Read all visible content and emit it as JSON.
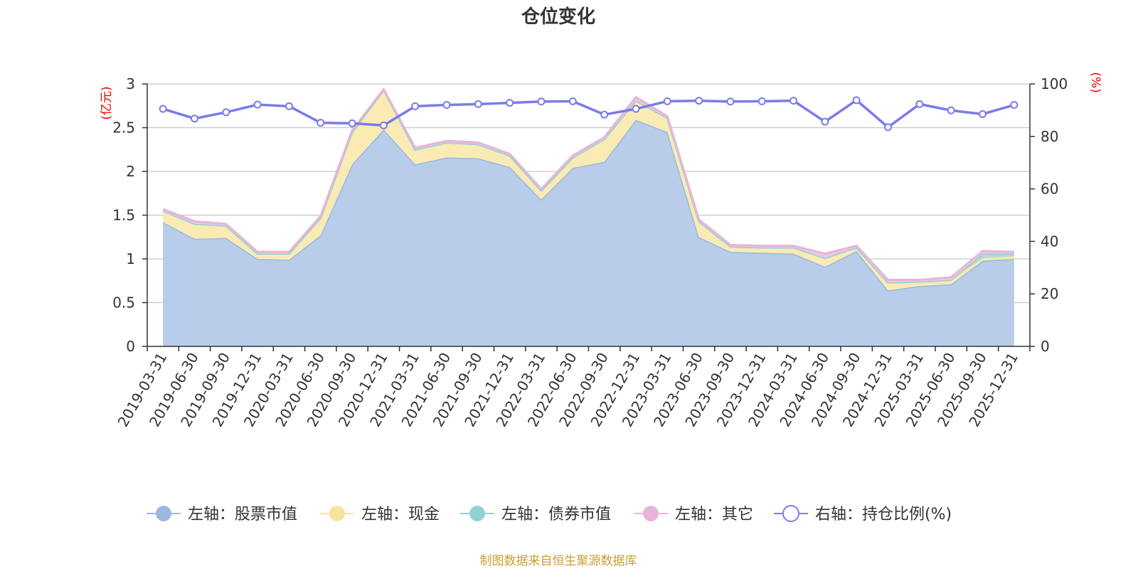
{
  "chart_data": {
    "type": "area",
    "title": "仓位变化",
    "source_note": "制图数据来自恒生聚源数据库",
    "left_axis": {
      "unit": "(亿元)",
      "min": 0,
      "max": 3,
      "ticks": [
        "0",
        "0.5",
        "1",
        "1.5",
        "2",
        "2.5",
        "3"
      ]
    },
    "right_axis": {
      "unit": "(%)",
      "min": 0,
      "max": 100,
      "ticks": [
        "0",
        "20",
        "40",
        "60",
        "80",
        "100"
      ]
    },
    "categories": [
      "2019-03-31",
      "2019-06-30",
      "2019-09-30",
      "2019-12-31",
      "2020-03-31",
      "2020-06-30",
      "2020-09-30",
      "2020-12-31",
      "2021-03-31",
      "2021-06-30",
      "2021-09-30",
      "2021-12-31",
      "2022-03-31",
      "2022-06-30",
      "2022-09-30",
      "2022-12-31",
      "2023-03-31",
      "2023-06-30",
      "2023-09-30",
      "2023-12-31",
      "2024-03-31",
      "2024-06-30",
      "2024-09-30",
      "2024-12-31",
      "2025-03-31",
      "2025-06-30",
      "2025-09-30",
      "2025-12-31"
    ],
    "series": [
      {
        "name": "左轴：股票市值",
        "axis": "left",
        "color": "#9cb8e0",
        "fill": "#b8cde9",
        "values": [
          1.42,
          1.23,
          1.24,
          1.0,
          0.99,
          1.27,
          2.08,
          2.48,
          2.08,
          2.16,
          2.15,
          2.05,
          1.68,
          2.04,
          2.11,
          2.59,
          2.45,
          1.25,
          1.08,
          1.07,
          1.06,
          0.91,
          1.09,
          0.64,
          0.69,
          0.71,
          0.98,
          1.0
        ]
      },
      {
        "name": "左轴：现金",
        "axis": "left",
        "color": "#f7e4a0",
        "fill": "#faebb4",
        "values": [
          0.13,
          0.17,
          0.14,
          0.06,
          0.07,
          0.2,
          0.37,
          0.45,
          0.17,
          0.17,
          0.16,
          0.13,
          0.1,
          0.12,
          0.26,
          0.22,
          0.16,
          0.18,
          0.06,
          0.06,
          0.07,
          0.1,
          0.04,
          0.09,
          0.05,
          0.05,
          0.03,
          0.03
        ]
      },
      {
        "name": "左轴：债券市值",
        "axis": "left",
        "color": "#8fd3d3",
        "fill": "#a8dede",
        "values": [
          0,
          0,
          0,
          0,
          0,
          0,
          0,
          0,
          0,
          0,
          0,
          0,
          0,
          0,
          0,
          0,
          0,
          0,
          0,
          0,
          0,
          0,
          0,
          0,
          0,
          0,
          0.05,
          0.03
        ]
      },
      {
        "name": "左轴：其它",
        "axis": "left",
        "color": "#e8b4d8",
        "fill": "#efc6e2",
        "values": [
          0.02,
          0.03,
          0.02,
          0.02,
          0.02,
          0.02,
          0.02,
          0.01,
          0.02,
          0.02,
          0.02,
          0.02,
          0.02,
          0.02,
          0.02,
          0.04,
          0.02,
          0.02,
          0.02,
          0.02,
          0.02,
          0.05,
          0.02,
          0.03,
          0.02,
          0.03,
          0.03,
          0.02
        ]
      },
      {
        "name": "右轴：持仓比例(%)",
        "axis": "right",
        "color": "#7b7bea",
        "values": [
          90.5,
          86.8,
          89.2,
          92.1,
          91.5,
          85.2,
          85,
          84.2,
          91.5,
          92,
          92.3,
          92.8,
          93.3,
          93.4,
          88.3,
          90.5,
          93.4,
          93.6,
          93.3,
          93.4,
          93.6,
          85.6,
          93.8,
          83.5,
          92.3,
          89.9,
          88.5,
          92
        ]
      }
    ]
  }
}
